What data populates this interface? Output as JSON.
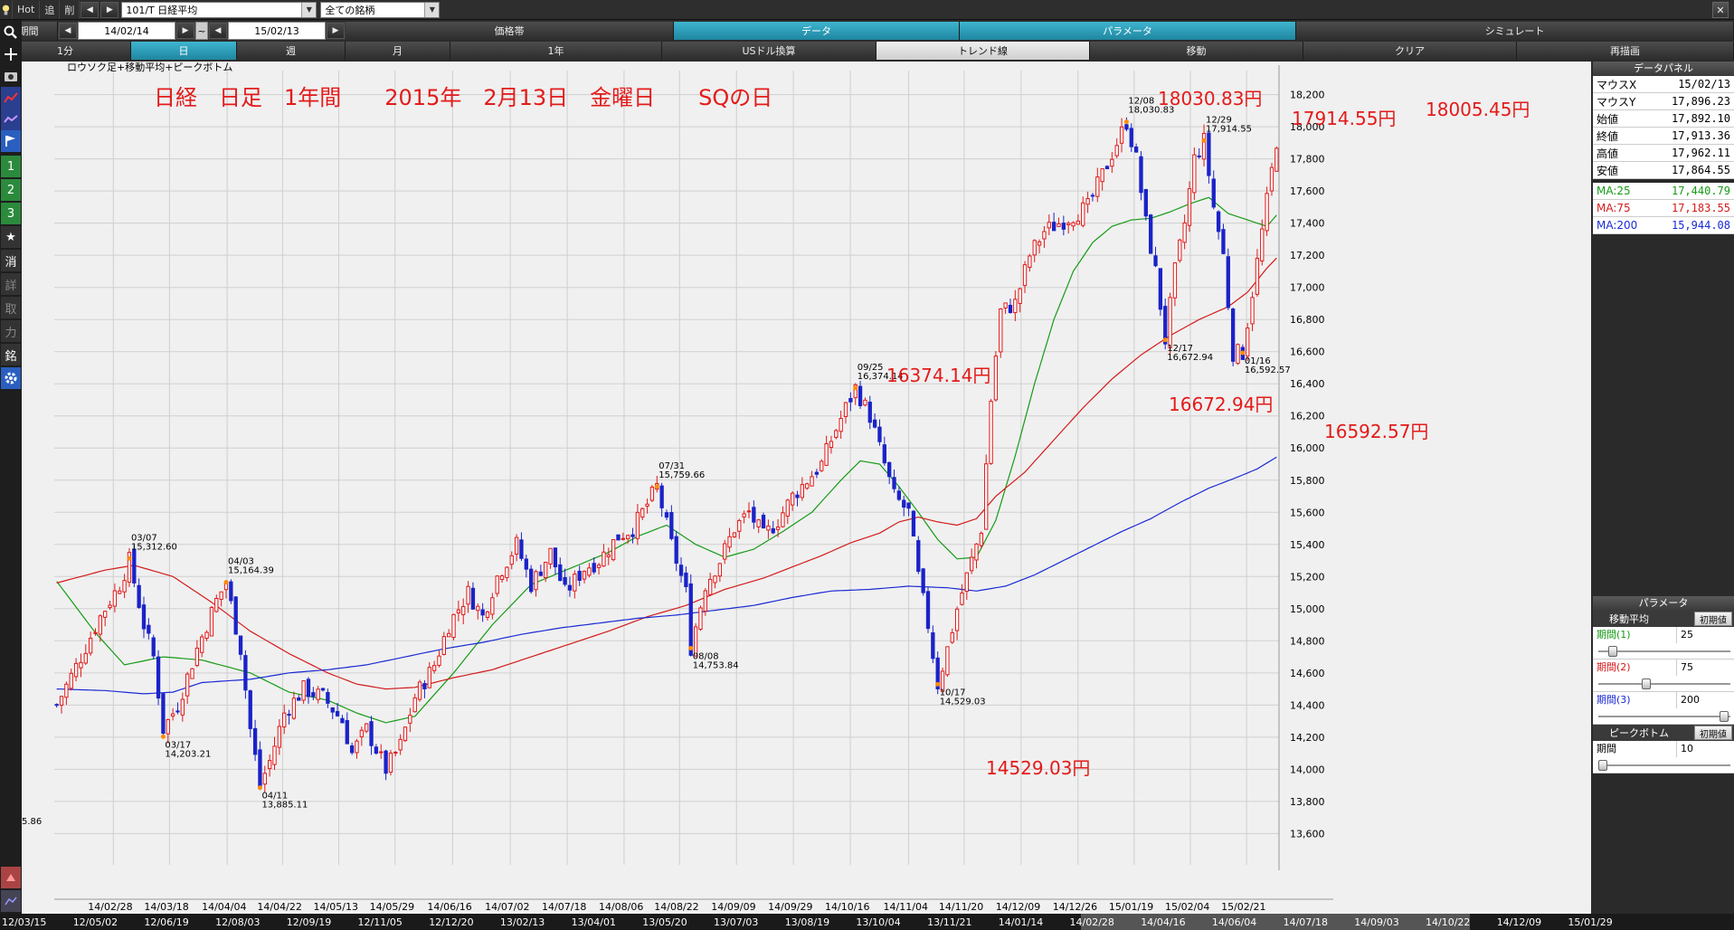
{
  "toolbar": {
    "hot": "Hot",
    "fwd": "追",
    "del": "削",
    "symbol": "101/T 日経平均",
    "universe": "全ての銘柄"
  },
  "row2": {
    "period_label": "期間",
    "date_from": "14/02/14",
    "tilde": "~",
    "date_to": "15/02/13",
    "tabs": [
      "価格帯",
      "データ",
      "パラメータ",
      "シミュレート"
    ]
  },
  "row3": {
    "tabs": [
      "1分",
      "日",
      "週",
      "月",
      "1年",
      "USドル換算",
      "トレンド線",
      "移動",
      "クリア",
      "再描画"
    ]
  },
  "leftbar": {
    "icons": [
      "search-icon",
      "crosshair-icon",
      "camera-icon",
      "chart-icon",
      "chart-line-icon",
      "flag-icon"
    ],
    "buttons": [
      "1",
      "2",
      "3",
      "★",
      "消",
      "詳",
      "取",
      "力",
      "銘"
    ]
  },
  "chart_title": "ロウソク足+移動平均+ピークボトム",
  "headline": "日経　日足　1年間　　2015年　2月13日　金曜日　　SQの日",
  "annotations_red": [
    {
      "text": "18030.83円",
      "date": "14/12/08"
    },
    {
      "text": "17914.55円",
      "date": "14/12/29"
    },
    {
      "text": "18005.45円",
      "date": "15/02/13"
    },
    {
      "text": "16374.14円",
      "date": "14/09/25"
    },
    {
      "text": "16672.94円",
      "date": "14/12/17"
    },
    {
      "text": "16592.57円",
      "date": "15/01/16"
    },
    {
      "text": "14529.03円",
      "date": "14/10/17"
    }
  ],
  "peak_labels": [
    {
      "date": "03/07",
      "value": "15,312.60"
    },
    {
      "date": "03/17",
      "value": "14,203.21"
    },
    {
      "date": "04/03",
      "value": "15,164.39"
    },
    {
      "date": "04/11",
      "value": "13,885.11"
    },
    {
      "date": "07/31",
      "value": "15,759.66"
    },
    {
      "date": "08/08",
      "value": "14,753.84"
    },
    {
      "date": "09/25",
      "value": "16,374.14"
    },
    {
      "date": "10/17",
      "value": "14,529.03"
    },
    {
      "date": "12/08",
      "value": "18,030.83"
    },
    {
      "date": "12/17",
      "value": "16,672.94"
    },
    {
      "date": "12/29",
      "value": "17,914.55"
    },
    {
      "date": "01/16",
      "value": "16,592.57"
    }
  ],
  "left_clip_label": "5.86",
  "panel": {
    "title": "データパネル",
    "rows": [
      {
        "label": "マウスX",
        "value": "15/02/13"
      },
      {
        "label": "マウスY",
        "value": "17,896.23"
      },
      {
        "label": "始値",
        "value": "17,892.10"
      },
      {
        "label": "終値",
        "value": "17,913.36"
      },
      {
        "label": "高値",
        "value": "17,962.11"
      },
      {
        "label": "安値",
        "value": "17,864.55"
      }
    ],
    "ma_rows": [
      {
        "label": "MA:25",
        "value": "17,440.79"
      },
      {
        "label": "MA:75",
        "value": "17,183.55"
      },
      {
        "label": "MA:200",
        "value": "15,944.08"
      }
    ],
    "param_title": "パラメータ",
    "ma_section": "移動平均",
    "init_label": "初期値",
    "periods": [
      {
        "label": "期間(1)",
        "value": "25",
        "knob": 0.08
      },
      {
        "label": "期間(2)",
        "value": "75",
        "knob": 0.36
      },
      {
        "label": "期間(3)",
        "value": "200",
        "knob": 1.0
      }
    ],
    "pb_section": "ピークボトム",
    "pb_period_label": "期間",
    "pb_period_value": "10",
    "pb_knob": 0.0
  },
  "colors": {
    "up": "#e01818",
    "down": "#1a23c8",
    "ma25": "#169b16",
    "ma75": "#d41a1a",
    "ma200": "#1a2ad4",
    "annotation": "#e41a1a",
    "peak_dot": "#ff8c00"
  },
  "timeline": [
    "12/03/15",
    "12/05/02",
    "12/06/19",
    "12/08/03",
    "12/09/19",
    "12/11/05",
    "12/12/20",
    "13/02/13",
    "13/04/01",
    "13/05/20",
    "13/07/03",
    "13/08/19",
    "13/10/04",
    "13/11/21",
    "14/01/14",
    "14/02/28",
    "14/04/16",
    "14/06/04",
    "14/07/18",
    "14/09/03",
    "14/10/22",
    "14/12/09",
    "15/01/29"
  ],
  "chart_data": {
    "type": "candlestick",
    "title": "ロウソク足+移動平均+ピークボトム",
    "ylim": [
      13450,
      18350
    ],
    "yticks": [
      13600,
      13800,
      14000,
      14200,
      14400,
      14600,
      14800,
      15000,
      15200,
      15400,
      15600,
      15800,
      16000,
      16200,
      16400,
      16600,
      16800,
      17000,
      17200,
      17400,
      17600,
      17800,
      18000,
      18200
    ],
    "xticks": [
      "14/02/28",
      "14/03/18",
      "14/04/04",
      "14/04/22",
      "14/05/13",
      "14/05/29",
      "14/06/16",
      "14/07/02",
      "14/07/18",
      "14/08/06",
      "14/08/22",
      "14/09/09",
      "14/09/29",
      "14/10/16",
      "14/11/04",
      "14/11/20",
      "14/12/09",
      "14/12/26",
      "15/01/19",
      "15/02/04",
      "15/02/21"
    ],
    "n_days": 245,
    "first_date": "14/02/14",
    "last_date": "15/02/13",
    "keypoints": [
      [
        0,
        14400
      ],
      [
        5,
        14700
      ],
      [
        9,
        14950
      ],
      [
        13,
        15150
      ],
      [
        15,
        15300
      ],
      [
        18,
        14900
      ],
      [
        20,
        14700
      ],
      [
        22,
        14250
      ],
      [
        25,
        14400
      ],
      [
        29,
        14750
      ],
      [
        33,
        15050
      ],
      [
        35,
        15164
      ],
      [
        38,
        14750
      ],
      [
        40,
        14250
      ],
      [
        42,
        13900
      ],
      [
        44,
        14050
      ],
      [
        47,
        14350
      ],
      [
        51,
        14500
      ],
      [
        55,
        14450
      ],
      [
        59,
        14300
      ],
      [
        61,
        14100
      ],
      [
        64,
        14250
      ],
      [
        68,
        14000
      ],
      [
        71,
        14150
      ],
      [
        74,
        14450
      ],
      [
        78,
        14650
      ],
      [
        81,
        14900
      ],
      [
        85,
        15100
      ],
      [
        88,
        14950
      ],
      [
        91,
        15200
      ],
      [
        95,
        15400
      ],
      [
        98,
        15150
      ],
      [
        102,
        15350
      ],
      [
        105,
        15100
      ],
      [
        109,
        15250
      ],
      [
        112,
        15300
      ],
      [
        116,
        15450
      ],
      [
        119,
        15500
      ],
      [
        122,
        15650
      ],
      [
        124,
        15760
      ],
      [
        127,
        15400
      ],
      [
        130,
        15100
      ],
      [
        131,
        14760
      ],
      [
        134,
        15150
      ],
      [
        137,
        15300
      ],
      [
        140,
        15500
      ],
      [
        143,
        15600
      ],
      [
        146,
        15450
      ],
      [
        149,
        15550
      ],
      [
        152,
        15700
      ],
      [
        155,
        15800
      ],
      [
        158,
        15900
      ],
      [
        160,
        16050
      ],
      [
        163,
        16250
      ],
      [
        165,
        16374
      ],
      [
        168,
        16200
      ],
      [
        171,
        15900
      ],
      [
        173,
        15700
      ],
      [
        176,
        15600
      ],
      [
        178,
        15200
      ],
      [
        180,
        14900
      ],
      [
        182,
        14529
      ],
      [
        184,
        14750
      ],
      [
        186,
        15000
      ],
      [
        189,
        15300
      ],
      [
        191,
        15500
      ],
      [
        193,
        16300
      ],
      [
        195,
        16850
      ],
      [
        198,
        16900
      ],
      [
        201,
        17200
      ],
      [
        204,
        17350
      ],
      [
        207,
        17400
      ],
      [
        210,
        17450
      ],
      [
        213,
        17500
      ],
      [
        216,
        17700
      ],
      [
        219,
        17900
      ],
      [
        221,
        18030
      ],
      [
        223,
        17800
      ],
      [
        225,
        17400
      ],
      [
        227,
        17100
      ],
      [
        229,
        16673
      ],
      [
        231,
        17100
      ],
      [
        233,
        17400
      ],
      [
        235,
        17800
      ],
      [
        237,
        17914
      ],
      [
        239,
        17500
      ],
      [
        241,
        17200
      ],
      [
        242,
        16900
      ],
      [
        243,
        16593
      ]
    ],
    "keypoints2": [
      [
        226,
        17000
      ],
      [
        229,
        16700
      ],
      [
        231,
        16900
      ],
      [
        233,
        17250
      ],
      [
        235,
        17700
      ],
      [
        237,
        17914
      ],
      [
        239,
        17350
      ],
      [
        241,
        17100
      ],
      [
        243,
        16850
      ],
      [
        245,
        16593
      ]
    ],
    "ma25": [
      [
        0,
        15170
      ],
      [
        8,
        14850
      ],
      [
        14,
        14650
      ],
      [
        22,
        14700
      ],
      [
        30,
        14680
      ],
      [
        40,
        14600
      ],
      [
        48,
        14480
      ],
      [
        56,
        14430
      ],
      [
        62,
        14350
      ],
      [
        68,
        14290
      ],
      [
        74,
        14330
      ],
      [
        82,
        14600
      ],
      [
        90,
        14900
      ],
      [
        98,
        15150
      ],
      [
        106,
        15250
      ],
      [
        114,
        15350
      ],
      [
        120,
        15450
      ],
      [
        126,
        15520
      ],
      [
        132,
        15400
      ],
      [
        138,
        15320
      ],
      [
        144,
        15370
      ],
      [
        150,
        15480
      ],
      [
        156,
        15600
      ],
      [
        162,
        15800
      ],
      [
        166,
        15920
      ],
      [
        170,
        15900
      ],
      [
        174,
        15760
      ],
      [
        178,
        15600
      ],
      [
        182,
        15430
      ],
      [
        186,
        15310
      ],
      [
        190,
        15320
      ],
      [
        194,
        15550
      ],
      [
        198,
        15950
      ],
      [
        202,
        16400
      ],
      [
        206,
        16800
      ],
      [
        210,
        17100
      ],
      [
        214,
        17280
      ],
      [
        218,
        17380
      ],
      [
        222,
        17420
      ],
      [
        226,
        17430
      ],
      [
        230,
        17470
      ],
      [
        234,
        17520
      ],
      [
        238,
        17560
      ],
      [
        242,
        17460
      ],
      [
        246,
        17420
      ],
      [
        250,
        17380
      ],
      [
        252,
        17450
      ]
    ],
    "ma75": [
      [
        0,
        15160
      ],
      [
        10,
        15240
      ],
      [
        16,
        15270
      ],
      [
        24,
        15200
      ],
      [
        32,
        15040
      ],
      [
        40,
        14860
      ],
      [
        48,
        14720
      ],
      [
        56,
        14600
      ],
      [
        62,
        14530
      ],
      [
        68,
        14500
      ],
      [
        74,
        14510
      ],
      [
        82,
        14570
      ],
      [
        90,
        14620
      ],
      [
        98,
        14700
      ],
      [
        106,
        14780
      ],
      [
        114,
        14860
      ],
      [
        122,
        14950
      ],
      [
        130,
        15020
      ],
      [
        138,
        15120
      ],
      [
        146,
        15190
      ],
      [
        152,
        15260
      ],
      [
        158,
        15330
      ],
      [
        164,
        15410
      ],
      [
        170,
        15470
      ],
      [
        174,
        15540
      ],
      [
        178,
        15570
      ],
      [
        182,
        15540
      ],
      [
        186,
        15520
      ],
      [
        190,
        15560
      ],
      [
        194,
        15700
      ],
      [
        200,
        15850
      ],
      [
        206,
        16050
      ],
      [
        212,
        16250
      ],
      [
        218,
        16430
      ],
      [
        224,
        16580
      ],
      [
        230,
        16700
      ],
      [
        236,
        16800
      ],
      [
        242,
        16880
      ],
      [
        246,
        16970
      ],
      [
        250,
        17120
      ],
      [
        252,
        17183
      ]
    ],
    "ma200": [
      [
        0,
        14500
      ],
      [
        10,
        14490
      ],
      [
        18,
        14470
      ],
      [
        24,
        14480
      ],
      [
        30,
        14540
      ],
      [
        40,
        14560
      ],
      [
        48,
        14600
      ],
      [
        56,
        14620
      ],
      [
        64,
        14650
      ],
      [
        72,
        14700
      ],
      [
        80,
        14750
      ],
      [
        88,
        14790
      ],
      [
        96,
        14840
      ],
      [
        104,
        14880
      ],
      [
        112,
        14910
      ],
      [
        120,
        14940
      ],
      [
        128,
        14960
      ],
      [
        136,
        14990
      ],
      [
        144,
        15020
      ],
      [
        152,
        15070
      ],
      [
        160,
        15110
      ],
      [
        168,
        15120
      ],
      [
        176,
        15140
      ],
      [
        184,
        15130
      ],
      [
        190,
        15110
      ],
      [
        196,
        15140
      ],
      [
        202,
        15210
      ],
      [
        208,
        15300
      ],
      [
        214,
        15390
      ],
      [
        220,
        15480
      ],
      [
        226,
        15560
      ],
      [
        232,
        15660
      ],
      [
        238,
        15750
      ],
      [
        244,
        15820
      ],
      [
        248,
        15870
      ],
      [
        252,
        15944
      ]
    ]
  }
}
